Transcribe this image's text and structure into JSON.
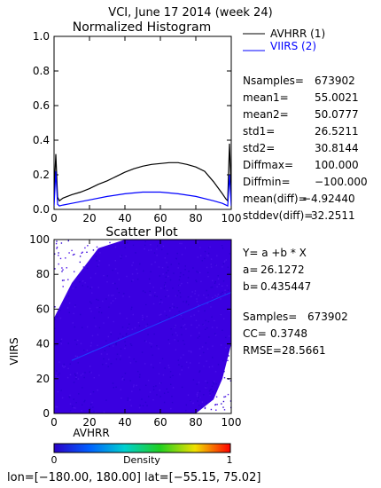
{
  "title": "VCI,  June 17 2014 (week 24)",
  "colors": {
    "series1": "#000000",
    "series2": "#0000ff",
    "scatter_bg": "#3a00e0"
  },
  "chart_data": [
    {
      "type": "line",
      "title": "Normalized Histogram",
      "xlim": [
        0,
        100
      ],
      "ylim": [
        0,
        1.0
      ],
      "x_ticks": [
        "0",
        "20",
        "40",
        "60",
        "80",
        "100"
      ],
      "y_ticks": [
        "0.0",
        "0.2",
        "0.4",
        "0.6",
        "0.8",
        "1.0"
      ],
      "legend": [
        "AVHRR (1)",
        "VIIRS (2)"
      ],
      "series": [
        {
          "name": "AVHRR (1)",
          "x": [
            0,
            1,
            2,
            3,
            5,
            10,
            15,
            20,
            25,
            30,
            35,
            40,
            45,
            50,
            55,
            60,
            65,
            70,
            75,
            80,
            85,
            90,
            95,
            97,
            98,
            99,
            100
          ],
          "y": [
            0.1,
            0.32,
            0.07,
            0.05,
            0.065,
            0.085,
            0.1,
            0.12,
            0.145,
            0.165,
            0.19,
            0.215,
            0.235,
            0.25,
            0.26,
            0.265,
            0.27,
            0.27,
            0.26,
            0.245,
            0.22,
            0.16,
            0.09,
            0.06,
            0.05,
            0.38,
            0.1
          ]
        },
        {
          "name": "VIIRS (2)",
          "x": [
            0,
            1,
            2,
            3,
            5,
            10,
            20,
            30,
            40,
            50,
            60,
            70,
            80,
            90,
            95,
            97,
            98,
            99,
            100
          ],
          "y": [
            0.02,
            0.22,
            0.03,
            0.02,
            0.025,
            0.035,
            0.055,
            0.075,
            0.09,
            0.1,
            0.1,
            0.09,
            0.075,
            0.05,
            0.035,
            0.025,
            0.02,
            0.2,
            0.02
          ]
        }
      ]
    },
    {
      "type": "scatter",
      "title": "Scatter Plot",
      "xlabel": "AVHRR",
      "ylabel": "VIIRS",
      "xlim": [
        0,
        100
      ],
      "ylim": [
        0,
        100
      ],
      "x_ticks": [
        "0",
        "20",
        "40",
        "60",
        "80",
        "100"
      ],
      "y_ticks": [
        "0",
        "20",
        "40",
        "60",
        "80",
        "100"
      ],
      "fit_line": {
        "x": [
          10,
          100
        ],
        "y": [
          30.48,
          69.67
        ]
      },
      "colorbar": {
        "label": "Density",
        "min": "0",
        "max": "1"
      }
    }
  ],
  "stats": [
    {
      "label": "Nsamples=",
      "value": "673902"
    },
    {
      "label": "mean1=",
      "value": "55.0021"
    },
    {
      "label": "mean2=",
      "value": "50.0777"
    },
    {
      "label": "std1=",
      "value": "26.5211"
    },
    {
      "label": "std2=",
      "value": "30.8144"
    },
    {
      "label": "Diffmax=",
      "value": "100.000"
    },
    {
      "label": "Diffmin=",
      "value": "−100.000"
    },
    {
      "label": "mean(diff)=",
      "value": "−4.92440"
    },
    {
      "label": "stddev(diff)=",
      "value": "32.2511"
    }
  ],
  "regression": {
    "equation": "Y= a +b * X",
    "a_label": "a=",
    "a_value": "26.1272",
    "b_label": "b=",
    "b_value": "0.435447",
    "samples_label": "Samples=",
    "samples_value": "673902",
    "cc_label": "CC=",
    "cc_value": "0.3748",
    "rmse_label": "RMSE=",
    "rmse_value": "28.5661"
  },
  "footer": "lon=[−180.00, 180.00] lat=[−55.15, 75.02]"
}
